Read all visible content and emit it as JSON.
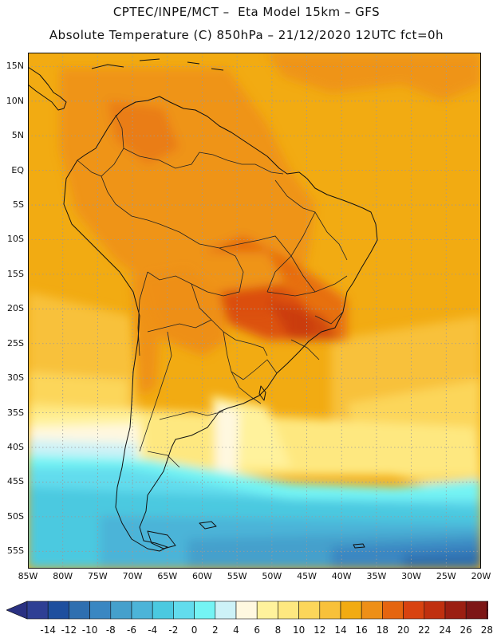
{
  "header": {
    "line1": "CPTEC/INPE/MCT –  Eta Model 15km – GFS",
    "line2": "Absolute Temperature (C) 850hPa – 21/12/2020 12UTC fct=0h"
  },
  "axes": {
    "y_ticks": [
      "15N",
      "10N",
      "5N",
      "EQ",
      "5S",
      "10S",
      "15S",
      "20S",
      "25S",
      "30S",
      "35S",
      "40S",
      "45S",
      "50S",
      "55S"
    ],
    "x_ticks": [
      "85W",
      "80W",
      "75W",
      "70W",
      "65W",
      "60W",
      "55W",
      "50W",
      "45W",
      "40W",
      "35W",
      "30W",
      "25W",
      "20W"
    ],
    "lon_range": [
      -85,
      -20
    ],
    "lat_range": [
      -57.5,
      17
    ],
    "grid": "dotted"
  },
  "colorbar": {
    "labels": [
      "-14",
      "-12",
      "-10",
      "-8",
      "-6",
      "-4",
      "-2",
      "0",
      "2",
      "4",
      "6",
      "8",
      "10",
      "12",
      "14",
      "16",
      "18",
      "20",
      "22",
      "24",
      "26",
      "28"
    ],
    "colors": [
      "#2e3f94",
      "#1e4f9e",
      "#2f6fb0",
      "#3a87c2",
      "#45a0cc",
      "#4cb4d8",
      "#4bc9e0",
      "#62dced",
      "#74f4f4",
      "#cdf2f7",
      "#fff8e0",
      "#fff29c",
      "#fee880",
      "#fcd65a",
      "#f8c13a",
      "#f2ab12",
      "#ee8f17",
      "#e5650f",
      "#d84310",
      "#c0300f",
      "#9b1f12",
      "#7d1616",
      "#5e0f1c"
    ],
    "less_arrow_color": "#2a3182",
    "more_arrow_color": "#6b0a26"
  }
}
